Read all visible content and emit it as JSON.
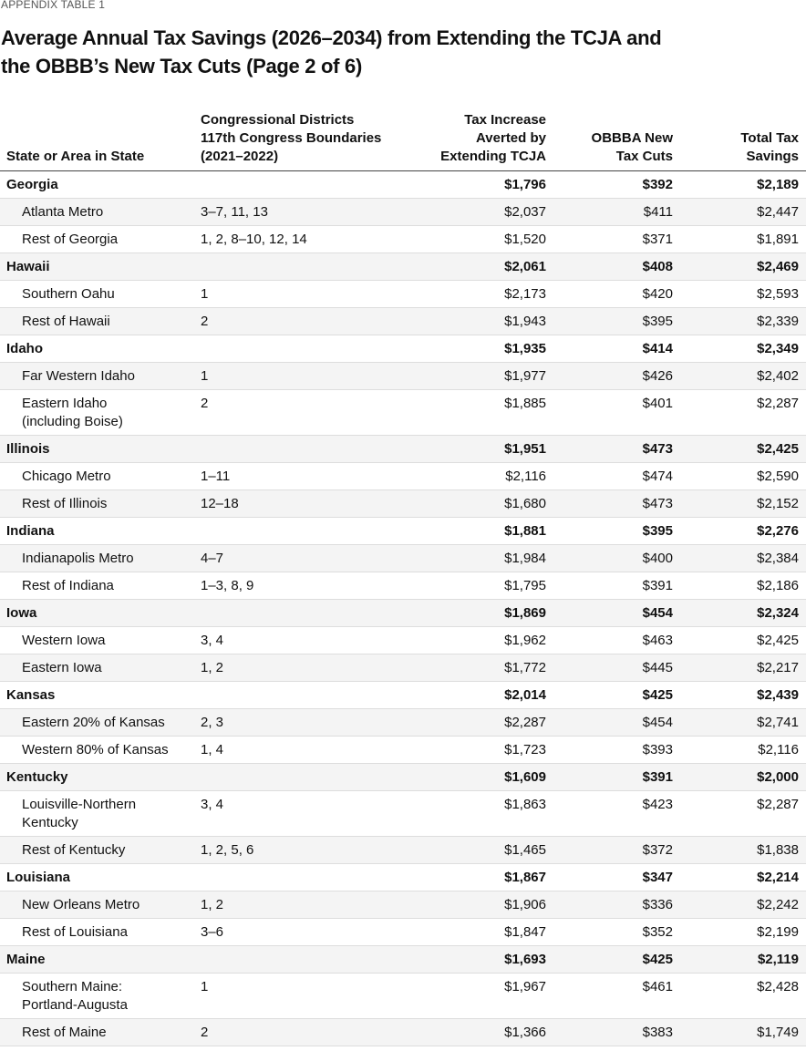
{
  "header": {
    "label": "APPENDIX TABLE 1",
    "title": [
      "Average Annual Tax Savings (2026–2034) from Extending the TCJA and",
      "the OBBB’s New Tax Cuts (Page 2 of 6)"
    ]
  },
  "table": {
    "columns": [
      [
        "State or Area in State"
      ],
      [
        "Congressional Districts",
        "117th Congress Boundaries",
        "(2021–2022)"
      ],
      [
        "Tax Increase",
        "Averted by",
        "Extending TCJA"
      ],
      [
        "OBBBA New",
        "Tax Cuts"
      ],
      [
        "Total Tax",
        "Savings"
      ]
    ],
    "states": [
      {
        "name": "Georgia",
        "values": [
          "$1,796",
          "$392",
          "$2,189"
        ],
        "areas": [
          {
            "name": "Atlanta Metro",
            "districts": "3–7, 11, 13",
            "values": [
              "$2,037",
              "$411",
              "$2,447"
            ]
          },
          {
            "name": "Rest of Georgia",
            "districts": "1, 2, 8–10, 12, 14",
            "values": [
              "$1,520",
              "$371",
              "$1,891"
            ]
          }
        ]
      },
      {
        "name": "Hawaii",
        "values": [
          "$2,061",
          "$408",
          "$2,469"
        ],
        "areas": [
          {
            "name": "Southern Oahu",
            "districts": "1",
            "values": [
              "$2,173",
              "$420",
              "$2,593"
            ]
          },
          {
            "name": "Rest of Hawaii",
            "districts": "2",
            "values": [
              "$1,943",
              "$395",
              "$2,339"
            ]
          }
        ]
      },
      {
        "name": "Idaho",
        "values": [
          "$1,935",
          "$414",
          "$2,349"
        ],
        "areas": [
          {
            "name": "Far Western Idaho",
            "districts": "1",
            "values": [
              "$1,977",
              "$426",
              "$2,402"
            ]
          },
          {
            "name": "Eastern Idaho\n(including Boise)",
            "districts": "2",
            "values": [
              "$1,885",
              "$401",
              "$2,287"
            ]
          }
        ]
      },
      {
        "name": "Illinois",
        "values": [
          "$1,951",
          "$473",
          "$2,425"
        ],
        "areas": [
          {
            "name": "Chicago Metro",
            "districts": "1–11",
            "values": [
              "$2,116",
              "$474",
              "$2,590"
            ]
          },
          {
            "name": "Rest of Illinois",
            "districts": "12–18",
            "values": [
              "$1,680",
              "$473",
              "$2,152"
            ]
          }
        ]
      },
      {
        "name": "Indiana",
        "values": [
          "$1,881",
          "$395",
          "$2,276"
        ],
        "areas": [
          {
            "name": "Indianapolis Metro",
            "districts": "4–7",
            "values": [
              "$1,984",
              "$400",
              "$2,384"
            ]
          },
          {
            "name": "Rest of Indiana",
            "districts": "1–3, 8, 9",
            "values": [
              "$1,795",
              "$391",
              "$2,186"
            ]
          }
        ]
      },
      {
        "name": "Iowa",
        "values": [
          "$1,869",
          "$454",
          "$2,324"
        ],
        "areas": [
          {
            "name": "Western Iowa",
            "districts": "3, 4",
            "values": [
              "$1,962",
              "$463",
              "$2,425"
            ]
          },
          {
            "name": "Eastern Iowa",
            "districts": "1, 2",
            "values": [
              "$1,772",
              "$445",
              "$2,217"
            ]
          }
        ]
      },
      {
        "name": "Kansas",
        "values": [
          "$2,014",
          "$425",
          "$2,439"
        ],
        "areas": [
          {
            "name": "Eastern 20% of Kansas",
            "districts": "2, 3",
            "values": [
              "$2,287",
              "$454",
              "$2,741"
            ]
          },
          {
            "name": "Western 80% of Kansas",
            "districts": "1, 4",
            "values": [
              "$1,723",
              "$393",
              "$2,116"
            ]
          }
        ]
      },
      {
        "name": "Kentucky",
        "values": [
          "$1,609",
          "$391",
          "$2,000"
        ],
        "areas": [
          {
            "name": "Louisville-Northern\nKentucky",
            "districts": "3, 4",
            "values": [
              "$1,863",
              "$423",
              "$2,287"
            ]
          },
          {
            "name": "Rest of Kentucky",
            "districts": "1, 2, 5, 6",
            "values": [
              "$1,465",
              "$372",
              "$1,838"
            ]
          }
        ]
      },
      {
        "name": "Louisiana",
        "values": [
          "$1,867",
          "$347",
          "$2,214"
        ],
        "areas": [
          {
            "name": "New Orleans Metro",
            "districts": "1, 2",
            "values": [
              "$1,906",
              "$336",
              "$2,242"
            ]
          },
          {
            "name": "Rest of Louisiana",
            "districts": "3–6",
            "values": [
              "$1,847",
              "$352",
              "$2,199"
            ]
          }
        ]
      },
      {
        "name": "Maine",
        "values": [
          "$1,693",
          "$425",
          "$2,119"
        ],
        "areas": [
          {
            "name": "Southern Maine:\nPortland-Augusta",
            "districts": "1",
            "values": [
              "$1,967",
              "$461",
              "$2,428"
            ]
          },
          {
            "name": "Rest of Maine",
            "districts": "2",
            "values": [
              "$1,366",
              "$383",
              "$1,749"
            ]
          }
        ]
      }
    ]
  }
}
